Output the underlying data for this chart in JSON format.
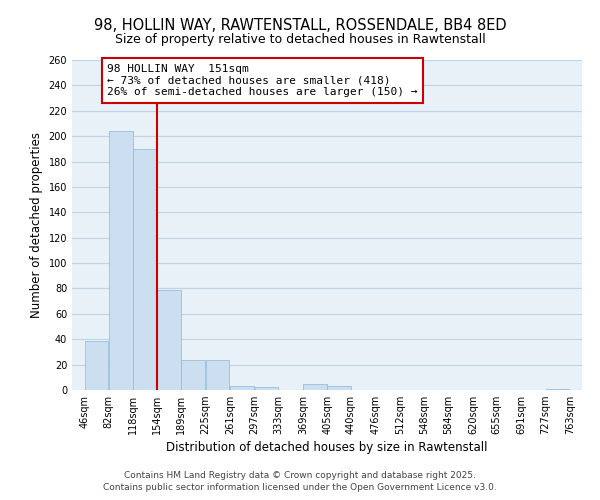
{
  "title": "98, HOLLIN WAY, RAWTENSTALL, ROSSENDALE, BB4 8ED",
  "subtitle": "Size of property relative to detached houses in Rawtenstall",
  "xlabel": "Distribution of detached houses by size in Rawtenstall",
  "ylabel": "Number of detached properties",
  "bar_color": "#ccdff0",
  "bar_edge_color": "#88b8d8",
  "background_color": "#ffffff",
  "plot_bg_color": "#e8f0f8",
  "grid_color": "#c0d4e8",
  "bins": [
    46,
    82,
    118,
    154,
    189,
    225,
    261,
    297,
    333,
    369,
    405,
    440,
    476,
    512,
    548,
    584,
    620,
    655,
    691,
    727,
    763
  ],
  "bin_labels": [
    "46sqm",
    "82sqm",
    "118sqm",
    "154sqm",
    "189sqm",
    "225sqm",
    "261sqm",
    "297sqm",
    "333sqm",
    "369sqm",
    "405sqm",
    "440sqm",
    "476sqm",
    "512sqm",
    "548sqm",
    "584sqm",
    "620sqm",
    "655sqm",
    "691sqm",
    "727sqm",
    "763sqm"
  ],
  "values": [
    39,
    204,
    190,
    79,
    24,
    24,
    3,
    2,
    0,
    5,
    3,
    0,
    0,
    0,
    0,
    0,
    0,
    0,
    0,
    1
  ],
  "vline_x": 154,
  "vline_color": "#cc0000",
  "annotation_title": "98 HOLLIN WAY  151sqm",
  "annotation_line1": "← 73% of detached houses are smaller (418)",
  "annotation_line2": "26% of semi-detached houses are larger (150) →",
  "annotation_box_color": "#ffffff",
  "annotation_box_edge_color": "#cc0000",
  "ylim": [
    0,
    260
  ],
  "yticks": [
    0,
    20,
    40,
    60,
    80,
    100,
    120,
    140,
    160,
    180,
    200,
    220,
    240,
    260
  ],
  "footer_line1": "Contains HM Land Registry data © Crown copyright and database right 2025.",
  "footer_line2": "Contains public sector information licensed under the Open Government Licence v3.0.",
  "title_fontsize": 10.5,
  "subtitle_fontsize": 9,
  "axis_label_fontsize": 8.5,
  "tick_fontsize": 7,
  "annotation_fontsize": 8,
  "footer_fontsize": 6.5
}
